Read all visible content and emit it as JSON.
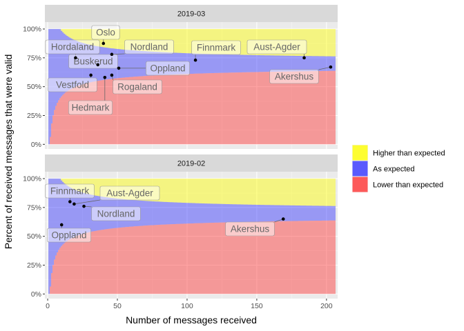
{
  "chart_data": {
    "type": "area",
    "xlabel": "Number of messages received",
    "ylabel": "Percent of received messages that were valid",
    "xlim": [
      -2,
      208
    ],
    "ylim": [
      -0.04,
      1.06
    ],
    "x_ticks": [
      0,
      50,
      100,
      150,
      200
    ],
    "y_ticks": [
      0,
      0.25,
      0.5,
      0.75,
      1.0
    ],
    "y_tick_labels": [
      "0%",
      "25%",
      "50%",
      "75%",
      "100%"
    ],
    "legend": {
      "position": "right",
      "entries": [
        {
          "label": "Higher than expected",
          "color": "#ffff00"
        },
        {
          "label": "As expected",
          "color": "#3333ff"
        },
        {
          "label": "Lower than expected",
          "color": "#ff3333"
        }
      ]
    },
    "band_model": {
      "p": 0.7,
      "z": 1.96,
      "x_max": 206
    },
    "panels": [
      {
        "strip": "2019-03",
        "points": [
          {
            "name": "Oslo",
            "x": 40,
            "y": 0.875
          },
          {
            "name": "Hordaland",
            "x": 20,
            "y": 0.75
          },
          {
            "name": "Nordland",
            "x": 46,
            "y": 0.78
          },
          {
            "name": "Buskerud",
            "x": 36,
            "y": 0.69
          },
          {
            "name": "Finnmark",
            "x": 106,
            "y": 0.73
          },
          {
            "name": "Aust-Agder",
            "x": 184,
            "y": 0.75
          },
          {
            "name": "Oppland",
            "x": 51,
            "y": 0.66
          },
          {
            "name": "Akershus",
            "x": 203,
            "y": 0.67
          },
          {
            "name": "Vestfold",
            "x": 31,
            "y": 0.6
          },
          {
            "name": "Rogaland",
            "x": 46,
            "y": 0.6
          },
          {
            "name": "Hedmark",
            "x": 41,
            "y": 0.58
          }
        ]
      },
      {
        "strip": "2019-02",
        "points": [
          {
            "name": "Finnmark",
            "x": 16,
            "y": 0.8
          },
          {
            "name": "Aust-Agder",
            "x": 19,
            "y": 0.78
          },
          {
            "name": "Nordland",
            "x": 26,
            "y": 0.76
          },
          {
            "name": "Akershus",
            "x": 169,
            "y": 0.65
          },
          {
            "name": "Oppland",
            "x": 10,
            "y": 0.6
          }
        ]
      }
    ]
  }
}
